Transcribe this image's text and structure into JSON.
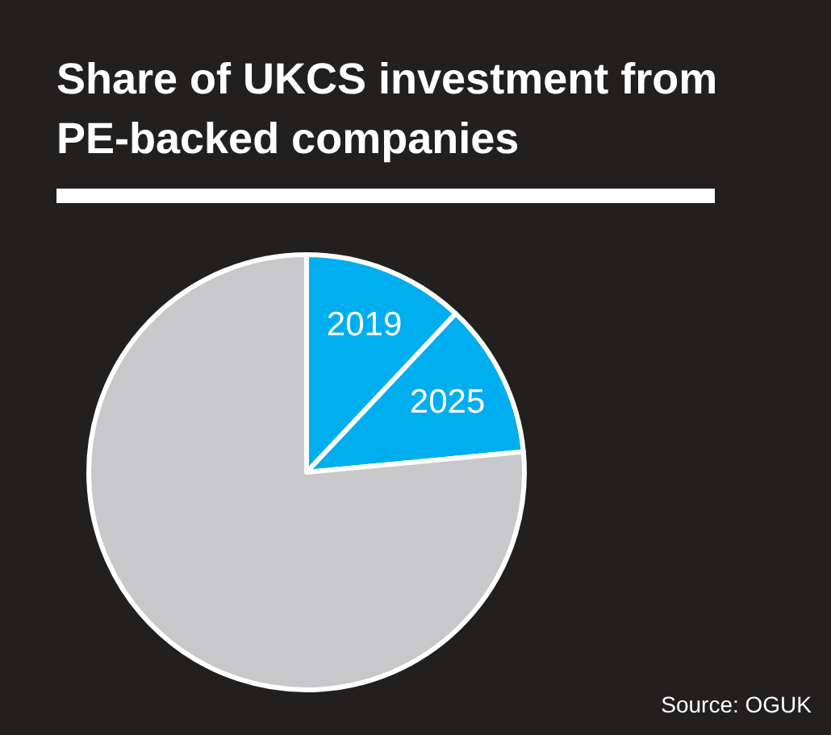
{
  "chart_data": {
    "type": "pie",
    "title": "Share of UKCS investment from PE-backed companies",
    "categories": [
      "2019",
      "2025",
      null
    ],
    "values": [
      12,
      11.5,
      76.5
    ],
    "colors": [
      "#00aeef",
      "#00aeef",
      "#c8c8ca"
    ],
    "annotations": [
      "Source: OGUK"
    ]
  }
}
